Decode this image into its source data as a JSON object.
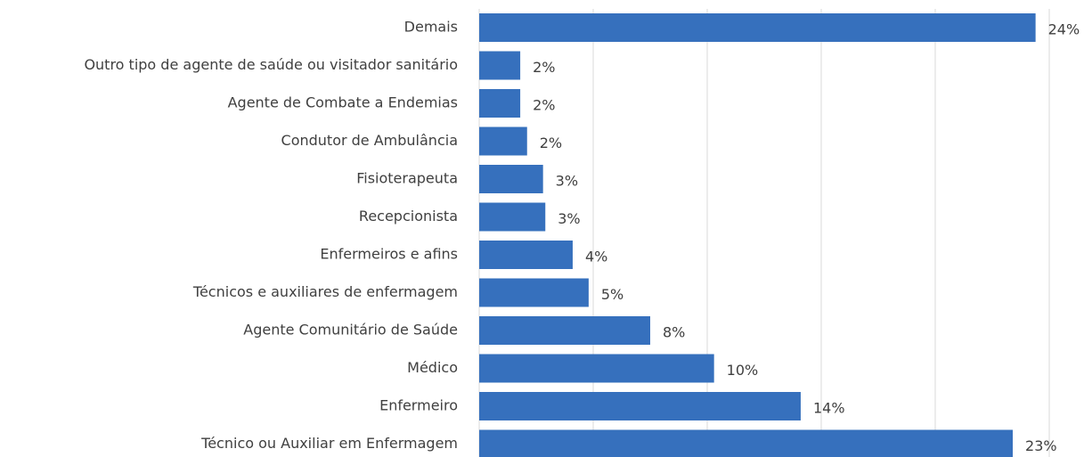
{
  "chart_data": {
    "type": "bar",
    "orientation": "horizontal",
    "categories": [
      "Demais",
      "Outro tipo de agente de saúde ou visitador sanitário",
      "Agente de Combate a Endemias",
      "Condutor  de Ambulância",
      "Fisioterapeuta",
      "Recepcionista",
      "Enfermeiros  e afins",
      "Técnicos e auxiliares de enfermagem",
      "Agente Comunitário de Saúde",
      "Médico",
      "Enfermeiro",
      "Técnico ou Auxiliar em Enfermagem"
    ],
    "values": [
      24.4,
      1.8,
      1.8,
      2.1,
      2.8,
      2.9,
      4.1,
      4.8,
      7.5,
      10.3,
      14.1,
      23.4
    ],
    "value_labels": [
      "24%",
      "2%",
      "2%",
      "2%",
      "3%",
      "3%",
      "4%",
      "5%",
      "8%",
      "10%",
      "14%",
      "23%"
    ],
    "color": "#3670bd",
    "xlim": [
      0,
      25
    ],
    "xticks": [
      0,
      5,
      10,
      15,
      20,
      25
    ],
    "grid": true
  }
}
